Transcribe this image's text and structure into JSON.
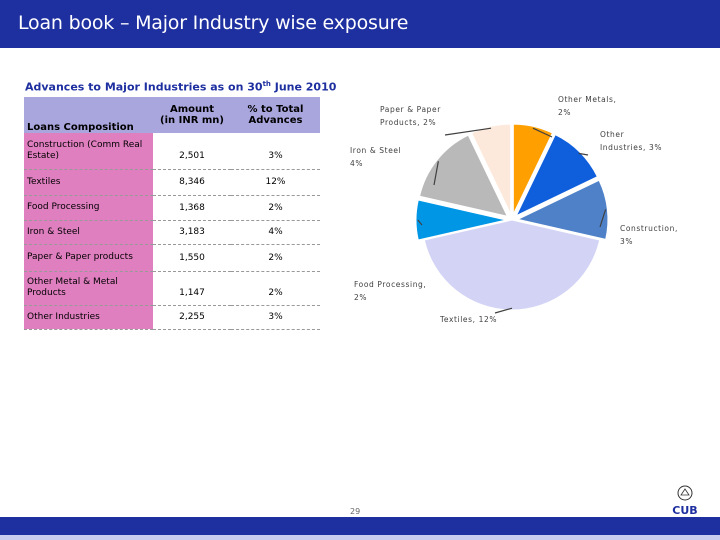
{
  "title": "Loan book – Major Industry wise exposure",
  "subtitle": {
    "text": "Advances to Major Industries as on 30",
    "sup": "th",
    "tail": " June 2010"
  },
  "table": {
    "headers": [
      "Loans Composition",
      "Amount\n(in INR mn)",
      "% to Total\nAdvances"
    ],
    "rows": [
      [
        "Construction (Comm Real Estate)",
        "2,501",
        "3%"
      ],
      [
        "Textiles",
        "8,346",
        "12%"
      ],
      [
        "Food Processing",
        "1,368",
        "2%"
      ],
      [
        "Iron & Steel",
        "3,183",
        "4%"
      ],
      [
        "Paper & Paper products",
        "1,550",
        "2%"
      ],
      [
        "Other Metal & Metal Products",
        "1,147",
        "2%"
      ],
      [
        "Other Industries",
        "2,255",
        "3%"
      ]
    ]
  },
  "chart_data": {
    "type": "pie",
    "slices": [
      {
        "label_lines": [
          "Paper & Paper",
          "Products, 2%"
        ],
        "value": 2,
        "color": "#fde9dc"
      },
      {
        "label_lines": [
          "Other Metals,",
          "2%"
        ],
        "value": 2,
        "color": "#ffa000"
      },
      {
        "label_lines": [
          "Other",
          "Industries, 3%"
        ],
        "value": 3,
        "color": "#0f5fdc"
      },
      {
        "label_lines": [
          "Construction,",
          "3%"
        ],
        "value": 3,
        "color": "#4f81c8"
      },
      {
        "label_lines": [
          "Textiles, 12%"
        ],
        "value": 12,
        "color": "#d3d4f5"
      },
      {
        "label_lines": [
          "Food Processing,",
          "2%"
        ],
        "value": 2,
        "color": "#0096e6"
      },
      {
        "label_lines": [
          "Iron & Steel",
          "4%"
        ],
        "value": 4,
        "color": "#b9b9b9"
      }
    ]
  },
  "page_number": "29",
  "logo_text": "CUB"
}
